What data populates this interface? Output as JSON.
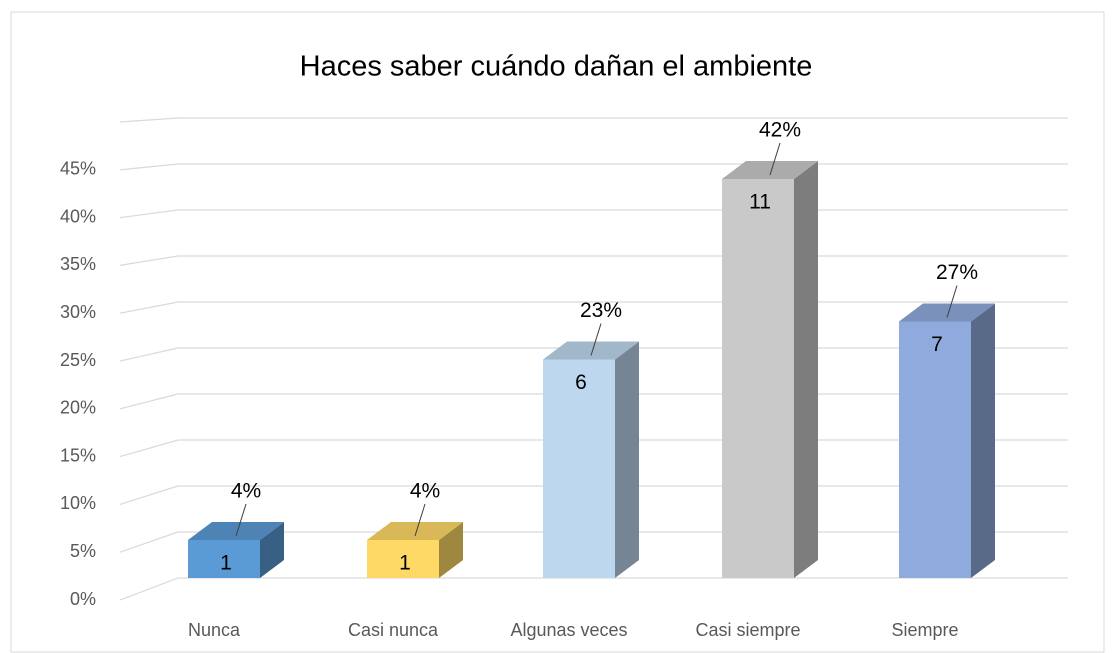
{
  "chart_data": {
    "type": "bar3d",
    "title": "Haces saber cuándo dañan el ambiente",
    "categories": [
      "Nunca",
      "Casi nunca",
      "Algunas veces",
      "Casi siempre",
      "Siempre"
    ],
    "values": [
      4,
      4,
      23,
      42,
      27
    ],
    "value_labels": [
      "4%",
      "4%",
      "23%",
      "42%",
      "27%"
    ],
    "counts": [
      1,
      1,
      6,
      11,
      7
    ],
    "colors": [
      "#5b9bd5",
      "#ffd966",
      "#bdd7ee",
      "#c9c9c9",
      "#8faadc"
    ],
    "ylim": [
      0,
      50
    ],
    "yticks": [
      {
        "value": 0,
        "label": "0%"
      },
      {
        "value": 5,
        "label": "5%"
      },
      {
        "value": 10,
        "label": "10%"
      },
      {
        "value": 15,
        "label": "15%"
      },
      {
        "value": 20,
        "label": "20%"
      },
      {
        "value": 25,
        "label": "25%"
      },
      {
        "value": 30,
        "label": "30%"
      },
      {
        "value": 35,
        "label": "35%"
      },
      {
        "value": 40,
        "label": "40%"
      },
      {
        "value": 45,
        "label": "45%"
      }
    ],
    "grid": true
  }
}
